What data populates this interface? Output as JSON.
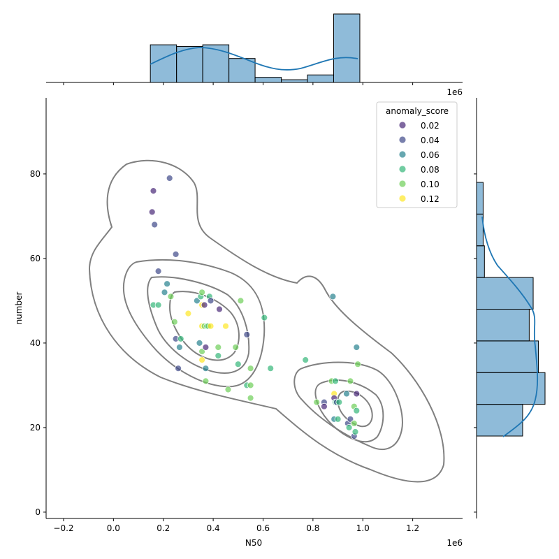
{
  "chart_data": {
    "type": "scatter",
    "xlabel": "N50",
    "ylabel": "number",
    "x_offset_label": "1e6",
    "xlim": [
      -0.27,
      1.4
    ],
    "ylim": [
      -1.5,
      98
    ],
    "x_ticks": [
      -0.2,
      0.0,
      0.2,
      0.4,
      0.6,
      0.8,
      1.0,
      1.2
    ],
    "x_tick_labels": [
      "−0.2",
      "0.0",
      "0.2",
      "0.4",
      "0.6",
      "0.8",
      "1.0",
      "1.2"
    ],
    "y_ticks": [
      0,
      20,
      40,
      60,
      80
    ],
    "y_tick_labels": [
      "0",
      "20",
      "40",
      "60",
      "80"
    ],
    "grid": false,
    "legend": {
      "title": "anomaly_score",
      "location": "upper right",
      "entries": [
        {
          "label": "0.02",
          "value": 0.02,
          "color": "#482878"
        },
        {
          "label": "0.04",
          "value": 0.04,
          "color": "#3e4989"
        },
        {
          "label": "0.06",
          "value": 0.06,
          "color": "#26828e"
        },
        {
          "label": "0.08",
          "value": 0.08,
          "color": "#35b779"
        },
        {
          "label": "0.10",
          "value": 0.1,
          "color": "#6ece58"
        },
        {
          "label": "0.12",
          "value": 0.12,
          "color": "#fde725"
        }
      ]
    },
    "points": [
      {
        "x": 0.155,
        "y": 71,
        "c": 0.02
      },
      {
        "x": 0.16,
        "y": 76,
        "c": 0.02
      },
      {
        "x": 0.165,
        "y": 68,
        "c": 0.04
      },
      {
        "x": 0.225,
        "y": 79,
        "c": 0.04
      },
      {
        "x": 0.18,
        "y": 57,
        "c": 0.04
      },
      {
        "x": 0.25,
        "y": 61,
        "c": 0.04
      },
      {
        "x": 0.16,
        "y": 49,
        "c": 0.08
      },
      {
        "x": 0.18,
        "y": 49,
        "c": 0.08
      },
      {
        "x": 0.205,
        "y": 52,
        "c": 0.06
      },
      {
        "x": 0.215,
        "y": 54,
        "c": 0.06
      },
      {
        "x": 0.23,
        "y": 51,
        "c": 0.1
      },
      {
        "x": 0.245,
        "y": 45,
        "c": 0.1
      },
      {
        "x": 0.25,
        "y": 41,
        "c": 0.04
      },
      {
        "x": 0.265,
        "y": 39,
        "c": 0.06
      },
      {
        "x": 0.27,
        "y": 41,
        "c": 0.08
      },
      {
        "x": 0.26,
        "y": 34,
        "c": 0.04
      },
      {
        "x": 0.3,
        "y": 47,
        "c": 0.12
      },
      {
        "x": 0.335,
        "y": 50,
        "c": 0.06
      },
      {
        "x": 0.35,
        "y": 51,
        "c": 0.08
      },
      {
        "x": 0.355,
        "y": 52,
        "c": 0.1
      },
      {
        "x": 0.355,
        "y": 49,
        "c": 0.12
      },
      {
        "x": 0.365,
        "y": 49,
        "c": 0.02
      },
      {
        "x": 0.345,
        "y": 40,
        "c": 0.06
      },
      {
        "x": 0.355,
        "y": 38,
        "c": 0.1
      },
      {
        "x": 0.355,
        "y": 44,
        "c": 0.12
      },
      {
        "x": 0.365,
        "y": 44,
        "c": 0.1
      },
      {
        "x": 0.375,
        "y": 44,
        "c": 0.08
      },
      {
        "x": 0.38,
        "y": 44,
        "c": 0.1
      },
      {
        "x": 0.39,
        "y": 44,
        "c": 0.12
      },
      {
        "x": 0.385,
        "y": 51,
        "c": 0.08
      },
      {
        "x": 0.39,
        "y": 50,
        "c": 0.04
      },
      {
        "x": 0.37,
        "y": 39,
        "c": 0.02
      },
      {
        "x": 0.37,
        "y": 34,
        "c": 0.06
      },
      {
        "x": 0.355,
        "y": 36,
        "c": 0.12
      },
      {
        "x": 0.37,
        "y": 31,
        "c": 0.1
      },
      {
        "x": 0.425,
        "y": 48,
        "c": 0.02
      },
      {
        "x": 0.42,
        "y": 39,
        "c": 0.1
      },
      {
        "x": 0.42,
        "y": 37,
        "c": 0.08
      },
      {
        "x": 0.45,
        "y": 44,
        "c": 0.12
      },
      {
        "x": 0.46,
        "y": 29,
        "c": 0.1
      },
      {
        "x": 0.49,
        "y": 39,
        "c": 0.1
      },
      {
        "x": 0.5,
        "y": 35,
        "c": 0.08
      },
      {
        "x": 0.51,
        "y": 50,
        "c": 0.1
      },
      {
        "x": 0.535,
        "y": 42,
        "c": 0.04
      },
      {
        "x": 0.535,
        "y": 30,
        "c": 0.08
      },
      {
        "x": 0.55,
        "y": 30,
        "c": 0.1
      },
      {
        "x": 0.55,
        "y": 27,
        "c": 0.1
      },
      {
        "x": 0.55,
        "y": 34,
        "c": 0.1
      },
      {
        "x": 0.605,
        "y": 46,
        "c": 0.08
      },
      {
        "x": 0.63,
        "y": 34,
        "c": 0.08
      },
      {
        "x": 0.77,
        "y": 36,
        "c": 0.08
      },
      {
        "x": 0.815,
        "y": 26,
        "c": 0.1
      },
      {
        "x": 0.845,
        "y": 26,
        "c": 0.04
      },
      {
        "x": 0.845,
        "y": 25,
        "c": 0.02
      },
      {
        "x": 0.875,
        "y": 31,
        "c": 0.1
      },
      {
        "x": 0.88,
        "y": 51,
        "c": 0.06
      },
      {
        "x": 0.885,
        "y": 28,
        "c": 0.12
      },
      {
        "x": 0.885,
        "y": 27,
        "c": 0.02
      },
      {
        "x": 0.89,
        "y": 26,
        "c": 0.08
      },
      {
        "x": 0.89,
        "y": 31,
        "c": 0.08
      },
      {
        "x": 0.895,
        "y": 26,
        "c": 0.04
      },
      {
        "x": 0.885,
        "y": 22,
        "c": 0.06
      },
      {
        "x": 0.9,
        "y": 22,
        "c": 0.08
      },
      {
        "x": 0.905,
        "y": 26,
        "c": 0.08
      },
      {
        "x": 0.935,
        "y": 28,
        "c": 0.06
      },
      {
        "x": 0.94,
        "y": 21,
        "c": 0.04
      },
      {
        "x": 0.945,
        "y": 20,
        "c": 0.08
      },
      {
        "x": 0.95,
        "y": 22,
        "c": 0.04
      },
      {
        "x": 0.95,
        "y": 31,
        "c": 0.1
      },
      {
        "x": 0.965,
        "y": 25,
        "c": 0.1
      },
      {
        "x": 0.965,
        "y": 21,
        "c": 0.1
      },
      {
        "x": 0.965,
        "y": 18,
        "c": 0.04
      },
      {
        "x": 0.97,
        "y": 19,
        "c": 0.08
      },
      {
        "x": 0.975,
        "y": 24,
        "c": 0.08
      },
      {
        "x": 0.975,
        "y": 28,
        "c": 0.02
      },
      {
        "x": 0.975,
        "y": 39,
        "c": 0.06
      },
      {
        "x": 0.98,
        "y": 35,
        "c": 0.1
      }
    ],
    "marginal_x_hist": {
      "bins": [
        0.148,
        0.253,
        0.358,
        0.463,
        0.568,
        0.673,
        0.778,
        0.883,
        0.988
      ],
      "counts": [
        11,
        10.5,
        11,
        7,
        1.5,
        0.8,
        2.2,
        20
      ]
    },
    "marginal_y_hist": {
      "bins": [
        18,
        25.5,
        33,
        40.5,
        48,
        55.5,
        63,
        70.5,
        78
      ],
      "counts": [
        17.5,
        26,
        23.5,
        20,
        21.5,
        3,
        2.5,
        2.5
      ]
    }
  }
}
